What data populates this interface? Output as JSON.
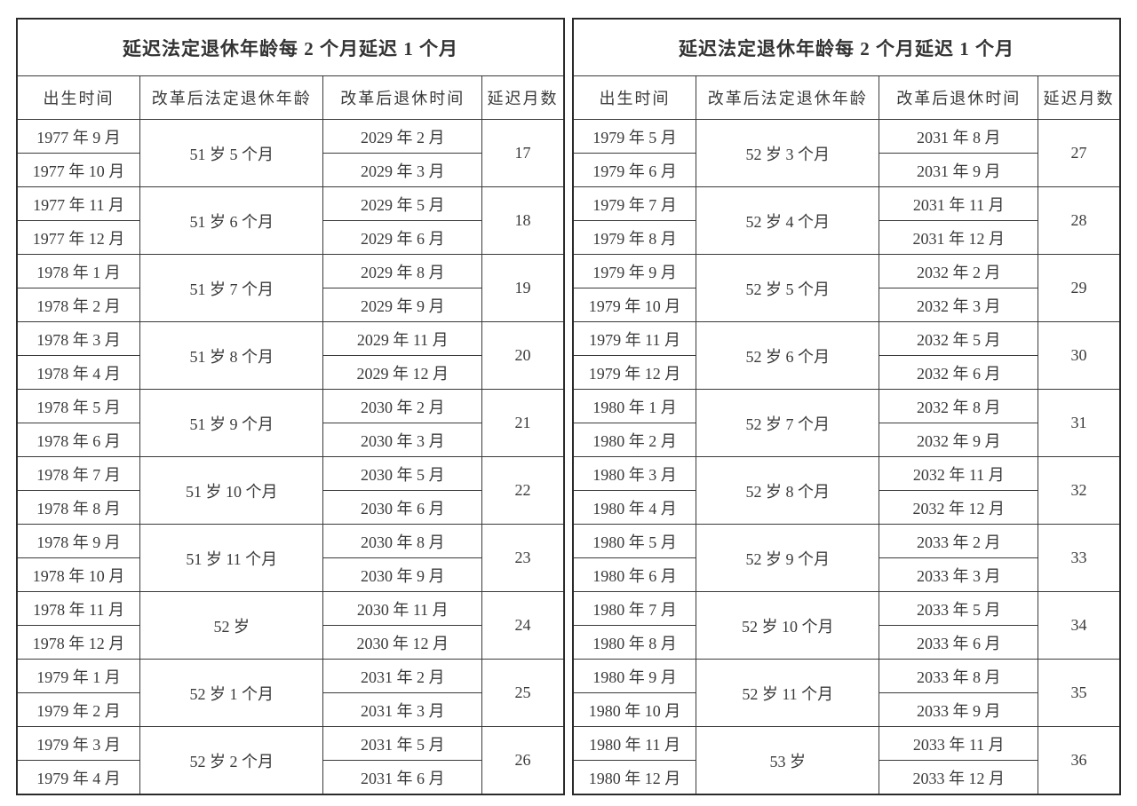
{
  "page": {
    "background": "#ffffff",
    "text_color": "#3a3a3a",
    "border_strong": "#2b2b2b",
    "border_weak": "#3a3a3a"
  },
  "table_title": "延迟法定退休年龄每 2 个月延迟 1 个月",
  "columns": [
    "出生时间",
    "改革后法定退休年龄",
    "改革后退休时间",
    "延迟月数"
  ],
  "tables": [
    {
      "id": "left",
      "groups": [
        {
          "births": [
            "1977 年 9 月",
            "1977 年 10 月"
          ],
          "age": "51 岁 5 个月",
          "retires": [
            "2029 年 2 月",
            "2029 年 3 月"
          ],
          "months": "17"
        },
        {
          "births": [
            "1977 年 11 月",
            "1977 年 12 月"
          ],
          "age": "51 岁 6 个月",
          "retires": [
            "2029 年 5 月",
            "2029 年 6 月"
          ],
          "months": "18"
        },
        {
          "births": [
            "1978 年 1 月",
            "1978 年 2 月"
          ],
          "age": "51 岁 7 个月",
          "retires": [
            "2029 年 8 月",
            "2029 年 9 月"
          ],
          "months": "19"
        },
        {
          "births": [
            "1978 年 3 月",
            "1978 年 4 月"
          ],
          "age": "51 岁 8 个月",
          "retires": [
            "2029 年 11 月",
            "2029 年 12 月"
          ],
          "months": "20"
        },
        {
          "births": [
            "1978 年 5 月",
            "1978 年 6 月"
          ],
          "age": "51 岁 9 个月",
          "retires": [
            "2030 年 2 月",
            "2030 年 3 月"
          ],
          "months": "21"
        },
        {
          "births": [
            "1978 年 7 月",
            "1978 年 8 月"
          ],
          "age": "51 岁 10 个月",
          "retires": [
            "2030 年 5 月",
            "2030 年 6 月"
          ],
          "months": "22"
        },
        {
          "births": [
            "1978 年 9 月",
            "1978 年 10 月"
          ],
          "age": "51 岁 11 个月",
          "retires": [
            "2030 年 8 月",
            "2030 年 9 月"
          ],
          "months": "23"
        },
        {
          "births": [
            "1978 年 11 月",
            "1978 年 12 月"
          ],
          "age": "52 岁",
          "retires": [
            "2030 年 11 月",
            "2030 年 12 月"
          ],
          "months": "24"
        },
        {
          "births": [
            "1979 年 1 月",
            "1979 年 2 月"
          ],
          "age": "52 岁 1 个月",
          "retires": [
            "2031 年 2 月",
            "2031 年 3 月"
          ],
          "months": "25"
        },
        {
          "births": [
            "1979 年 3 月",
            "1979 年 4 月"
          ],
          "age": "52 岁 2 个月",
          "retires": [
            "2031 年 5 月",
            "2031 年 6 月"
          ],
          "months": "26"
        }
      ]
    },
    {
      "id": "right",
      "groups": [
        {
          "births": [
            "1979 年 5 月",
            "1979 年 6 月"
          ],
          "age": "52 岁 3 个月",
          "retires": [
            "2031 年 8 月",
            "2031 年 9 月"
          ],
          "months": "27"
        },
        {
          "births": [
            "1979 年 7 月",
            "1979 年 8 月"
          ],
          "age": "52 岁 4 个月",
          "retires": [
            "2031 年 11 月",
            "2031 年 12 月"
          ],
          "months": "28"
        },
        {
          "births": [
            "1979 年 9 月",
            "1979 年 10 月"
          ],
          "age": "52 岁 5 个月",
          "retires": [
            "2032 年 2 月",
            "2032 年 3 月"
          ],
          "months": "29"
        },
        {
          "births": [
            "1979 年 11 月",
            "1979 年 12 月"
          ],
          "age": "52 岁 6 个月",
          "retires": [
            "2032 年 5 月",
            "2032 年 6 月"
          ],
          "months": "30"
        },
        {
          "births": [
            "1980 年 1 月",
            "1980 年 2 月"
          ],
          "age": "52 岁 7 个月",
          "retires": [
            "2032 年 8 月",
            "2032 年 9 月"
          ],
          "months": "31"
        },
        {
          "births": [
            "1980 年 3 月",
            "1980 年 4 月"
          ],
          "age": "52 岁 8 个月",
          "retires": [
            "2032 年 11 月",
            "2032 年 12 月"
          ],
          "months": "32"
        },
        {
          "births": [
            "1980 年 5 月",
            "1980 年 6 月"
          ],
          "age": "52 岁 9 个月",
          "retires": [
            "2033 年 2 月",
            "2033 年 3 月"
          ],
          "months": "33"
        },
        {
          "births": [
            "1980 年 7 月",
            "1980 年 8 月"
          ],
          "age": "52 岁 10 个月",
          "retires": [
            "2033 年 5 月",
            "2033 年 6 月"
          ],
          "months": "34"
        },
        {
          "births": [
            "1980 年 9 月",
            "1980 年 10 月"
          ],
          "age": "52 岁 11 个月",
          "retires": [
            "2033 年 8 月",
            "2033 年 9 月"
          ],
          "months": "35"
        },
        {
          "births": [
            "1980 年 11 月",
            "1980 年 12 月"
          ],
          "age": "53 岁",
          "retires": [
            "2033 年 11 月",
            "2033 年 12 月"
          ],
          "months": "36"
        }
      ]
    }
  ]
}
